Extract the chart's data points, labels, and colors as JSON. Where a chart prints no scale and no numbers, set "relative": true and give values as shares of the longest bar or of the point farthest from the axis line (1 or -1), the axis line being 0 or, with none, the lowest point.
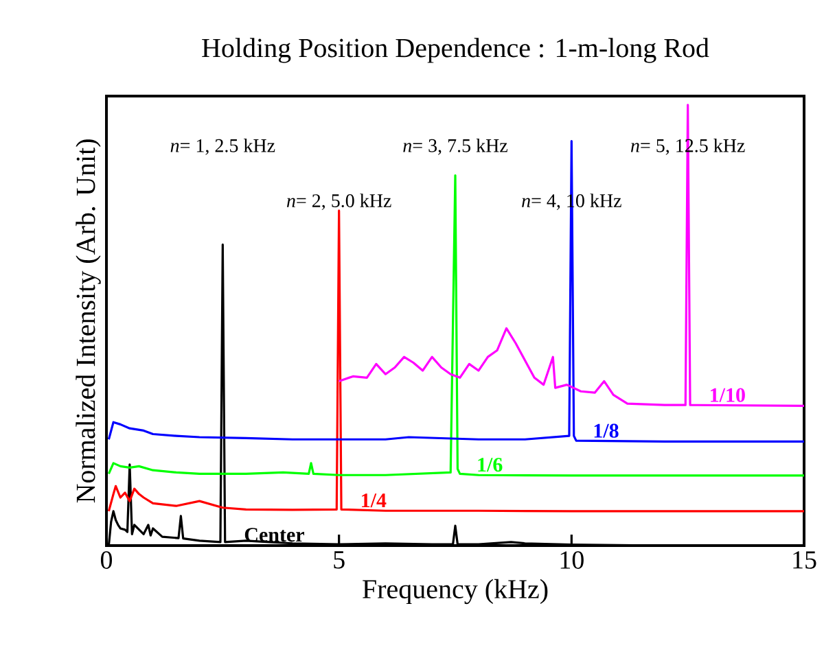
{
  "chart_data": {
    "type": "line",
    "title": "Holding Position Dependence : 1-m-long Rod",
    "xlabel": "Frequency (kHz)",
    "ylabel": "Normalized Intensity (Arb. Unit)",
    "xlim": [
      0,
      15
    ],
    "xticks": [
      0,
      5,
      10,
      15
    ],
    "relative": true,
    "tick_labels": "x",
    "series": [
      {
        "name": "Center",
        "color": "#000000",
        "x": [
          0.05,
          0.1,
          0.15,
          0.2,
          0.25,
          0.3,
          0.4,
          0.45,
          0.5,
          0.55,
          0.6,
          0.8,
          0.9,
          0.95,
          1.0,
          1.2,
          1.55,
          1.6,
          1.65,
          2.0,
          2.45,
          2.5,
          2.55,
          3.0,
          3.5,
          4.0,
          5.0,
          6.0,
          7.0,
          7.45,
          7.5,
          7.55,
          8.0,
          8.7,
          9.0,
          10.0,
          12.0,
          15.0
        ],
        "values": [
          0.0,
          0.054,
          0.078,
          0.058,
          0.047,
          0.039,
          0.036,
          0.031,
          0.184,
          0.026,
          0.047,
          0.026,
          0.047,
          0.023,
          0.039,
          0.02,
          0.017,
          0.067,
          0.016,
          0.011,
          0.008,
          0.683,
          0.008,
          0.011,
          0.008,
          0.005,
          0.003,
          0.005,
          0.003,
          0.003,
          0.045,
          0.003,
          0.003,
          0.008,
          0.005,
          0.002,
          0.0,
          0.0
        ]
      },
      {
        "name": "1/4",
        "color": "#ff0000",
        "x": [
          0.05,
          0.15,
          0.2,
          0.3,
          0.4,
          0.5,
          0.6,
          0.7,
          0.8,
          1.0,
          1.5,
          2.0,
          2.5,
          3.0,
          4.0,
          4.95,
          5.0,
          5.05,
          6.0,
          8.0,
          10.0,
          15.0
        ],
        "values": [
          0.078,
          0.117,
          0.135,
          0.109,
          0.12,
          0.101,
          0.129,
          0.117,
          0.109,
          0.096,
          0.09,
          0.101,
          0.086,
          0.082,
          0.081,
          0.082,
          0.76,
          0.082,
          0.079,
          0.079,
          0.078,
          0.078
        ]
      },
      {
        "name": "1/6",
        "color": "#00ff00",
        "x": [
          0.05,
          0.15,
          0.3,
          0.5,
          0.7,
          1.0,
          1.5,
          2.0,
          3.0,
          3.8,
          4.35,
          4.4,
          4.45,
          5.0,
          6.0,
          7.4,
          7.5,
          7.55,
          7.6,
          8.0,
          10.0,
          15.0
        ],
        "values": [
          0.163,
          0.187,
          0.18,
          0.177,
          0.18,
          0.171,
          0.166,
          0.163,
          0.163,
          0.166,
          0.163,
          0.187,
          0.163,
          0.16,
          0.16,
          0.166,
          0.84,
          0.174,
          0.163,
          0.16,
          0.159,
          0.159
        ]
      },
      {
        "name": "1/8",
        "color": "#0000ff",
        "x": [
          0.05,
          0.15,
          0.3,
          0.5,
          0.8,
          1.0,
          1.5,
          2.0,
          3.0,
          4.0,
          6.0,
          6.5,
          8.0,
          9.0,
          9.95,
          10.0,
          10.05,
          10.1,
          12.0,
          15.0
        ],
        "values": [
          0.241,
          0.28,
          0.275,
          0.266,
          0.261,
          0.253,
          0.249,
          0.246,
          0.244,
          0.241,
          0.241,
          0.246,
          0.241,
          0.241,
          0.249,
          0.918,
          0.249,
          0.238,
          0.236,
          0.236
        ]
      },
      {
        "name": "1/10",
        "color": "#ff00ff",
        "x": [
          5.0,
          5.3,
          5.6,
          5.8,
          6.0,
          6.2,
          6.4,
          6.6,
          6.8,
          7.0,
          7.2,
          7.4,
          7.6,
          7.8,
          8.0,
          8.2,
          8.4,
          8.6,
          8.8,
          9.0,
          9.2,
          9.4,
          9.6,
          9.65,
          9.9,
          10.2,
          10.5,
          10.7,
          10.9,
          11.2,
          12.0,
          12.45,
          12.5,
          12.55,
          15.0
        ],
        "values": [
          0.373,
          0.384,
          0.381,
          0.412,
          0.389,
          0.404,
          0.428,
          0.415,
          0.397,
          0.428,
          0.404,
          0.389,
          0.381,
          0.412,
          0.397,
          0.428,
          0.443,
          0.493,
          0.459,
          0.42,
          0.381,
          0.365,
          0.428,
          0.358,
          0.365,
          0.35,
          0.347,
          0.373,
          0.342,
          0.322,
          0.319,
          0.319,
          1.0,
          0.319,
          0.317
        ]
      }
    ],
    "annotations": [
      "*n*= 1, 2.5 kHz",
      "*n*= 2, 5.0 kHz",
      "*n*= 3, 7.5 kHz",
      "*n*= 4, 10 kHz",
      "*n*= 5, 12.5 kHz"
    ]
  }
}
